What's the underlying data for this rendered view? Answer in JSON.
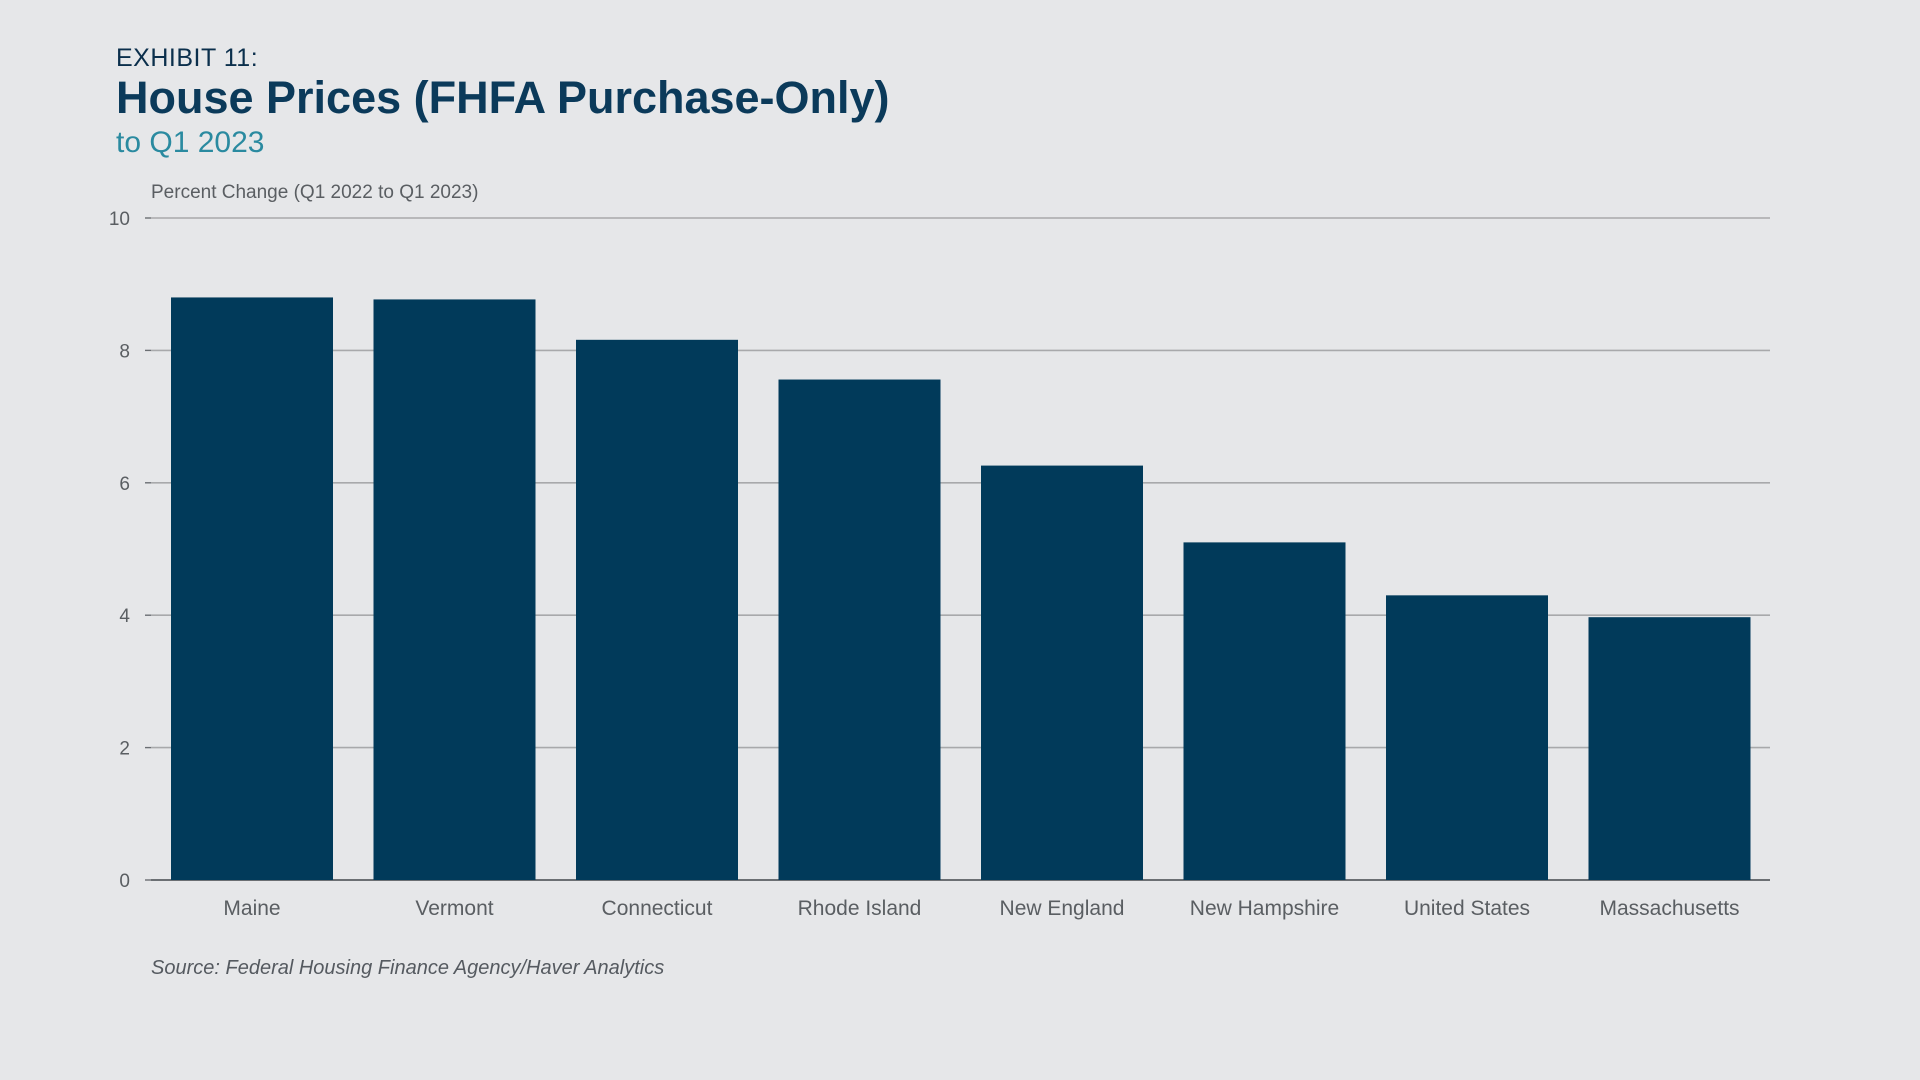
{
  "exhibit_label": "EXHIBIT 11:",
  "title": "House Prices (FHFA Purchase-Only)",
  "subtitle": "to Q1 2023",
  "source": "Source: Federal Housing Finance Agency/Haver Analytics",
  "colors": {
    "bar": "#013a5a",
    "grid": "#a8a9ab",
    "axis": "#6b6f73",
    "tick_text": "#5a5e62"
  },
  "chart_data": {
    "type": "bar",
    "ylabel": "Percent Change (Q1 2022 to Q1 2023)",
    "xlabel": "",
    "ylim": [
      0,
      10
    ],
    "yticks": [
      0,
      2,
      4,
      6,
      8,
      10
    ],
    "grid": true,
    "categories": [
      "Maine",
      "Vermont",
      "Connecticut",
      "Rhode Island",
      "New England",
      "New Hampshire",
      "United States",
      "Massachusetts"
    ],
    "values": [
      8.8,
      8.77,
      8.16,
      7.56,
      6.26,
      5.1,
      4.3,
      3.97
    ]
  }
}
